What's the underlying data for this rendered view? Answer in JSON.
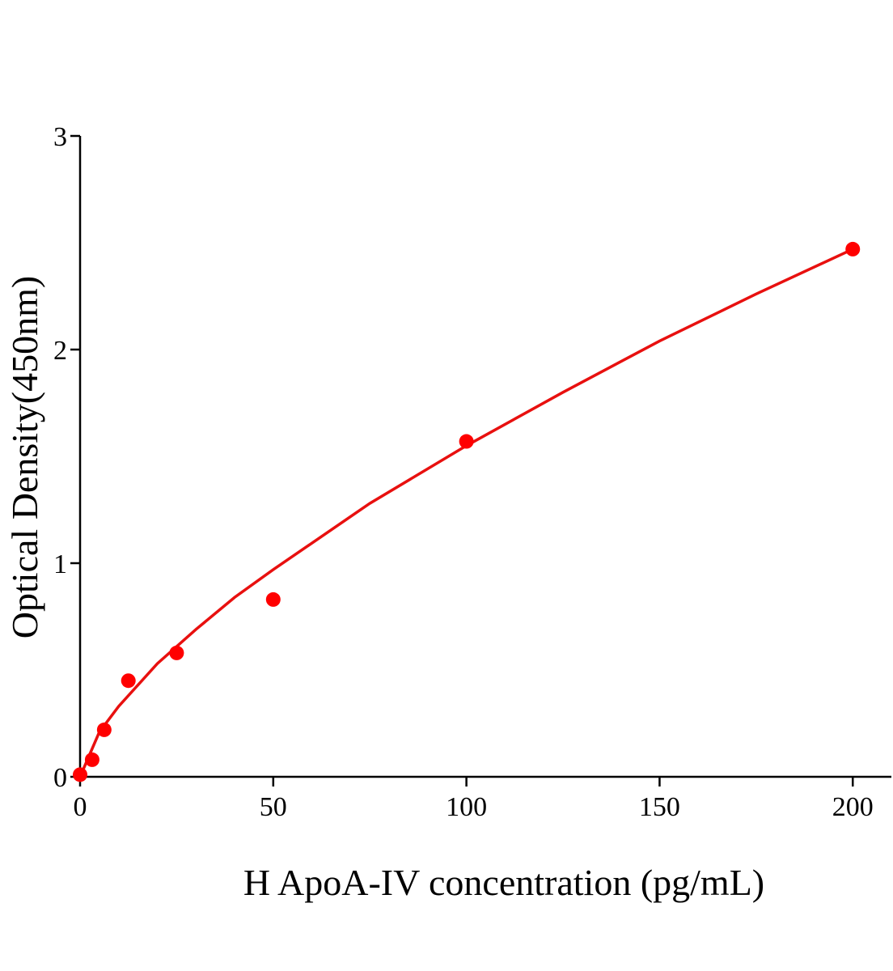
{
  "chart_data": {
    "type": "scatter",
    "x_label": "H ApoA-IV concentration (pg/mL)",
    "y_label": "Optical Density(450nm)",
    "x": [
      0,
      3.125,
      6.25,
      12.5,
      25,
      50,
      100,
      200
    ],
    "series": [
      {
        "color": "#ff0000",
        "values": [
          0.01,
          0.08,
          0.22,
          0.45,
          0.58,
          0.83,
          1.57,
          2.47
        ]
      }
    ],
    "fit": {
      "color": "#e8100f",
      "x": [
        0,
        5,
        10,
        20,
        30,
        40,
        50,
        75,
        100,
        125,
        150,
        175,
        200
      ],
      "values": [
        0,
        0.21,
        0.33,
        0.53,
        0.69,
        0.84,
        0.97,
        1.28,
        1.55,
        1.8,
        2.04,
        2.26,
        2.47
      ]
    },
    "xlim": [
      0,
      210
    ],
    "ylim": [
      0,
      3
    ],
    "xticks": [
      0,
      50,
      100,
      150,
      200
    ],
    "yticks": [
      0,
      1,
      2,
      3
    ]
  }
}
